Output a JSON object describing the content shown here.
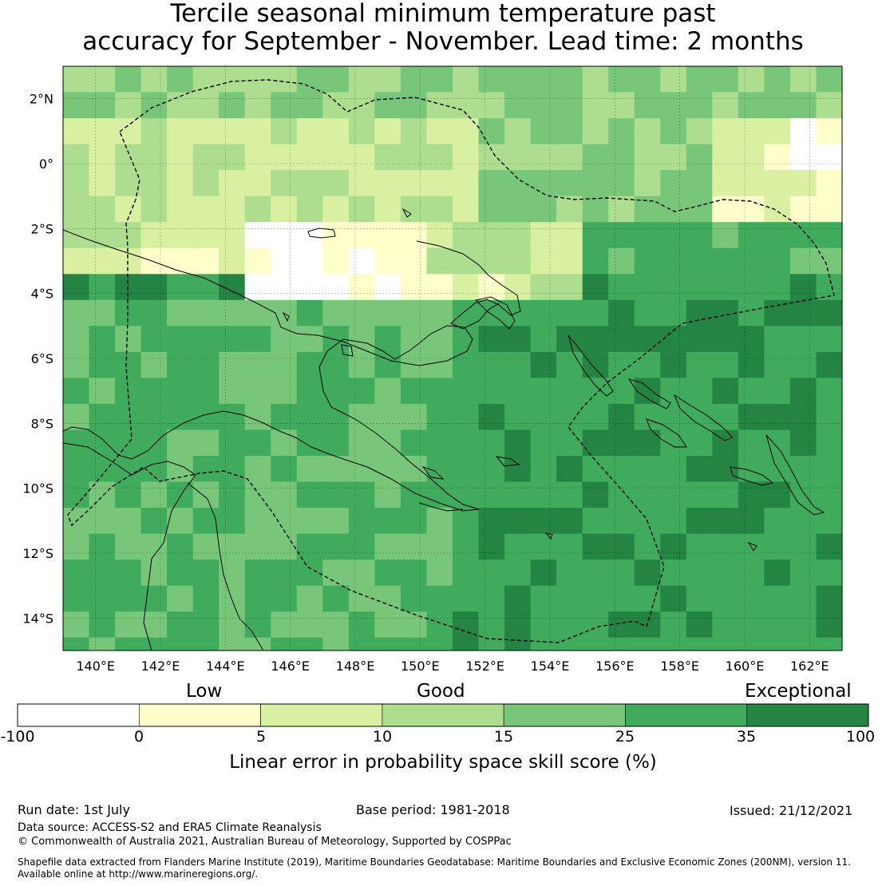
{
  "title": {
    "line1": "Tercile seasonal minimum temperature past",
    "line2": "accuracy for September - November. Lead time: 2 months"
  },
  "map": {
    "lat_labels": [
      "2°N",
      "0°",
      "2°S",
      "4°S",
      "6°S",
      "8°S",
      "10°S",
      "12°S",
      "14°S"
    ],
    "lon_labels": [
      "140°E",
      "142°E",
      "144°E",
      "146°E",
      "148°E",
      "150°E",
      "152°E",
      "154°E",
      "156°E",
      "158°E",
      "160°E",
      "162°E"
    ],
    "extent": {
      "lon": [
        139,
        163
      ],
      "lat": [
        -15,
        3
      ]
    },
    "grid_resolution_deg": 0.8
  },
  "colorbar": {
    "categories": [
      "Low",
      "Good",
      "Exceptional"
    ],
    "ticks": [
      "-100",
      "0",
      "5",
      "10",
      "15",
      "25",
      "35",
      "100"
    ],
    "colors": [
      "#ffffff",
      "#ffffcc",
      "#d9f0a3",
      "#addd8e",
      "#78c679",
      "#41ab5d",
      "#238443"
    ],
    "label": "Linear error in probability space skill score (%)"
  },
  "footer": {
    "run_date": "Run date: 1st July",
    "base_period": "Base period: 1981-2018",
    "issued": "Issued: 21/12/2021",
    "data_source": "Data source: ACCESS-S2 and ERA5 Climate Reanalysis",
    "copyright": "© Commonwealth of Australia 2021, Australian Bureau of Meteorology, Supported by COSPPac",
    "shapefile_line1": "Shapefile data extracted from Flanders Marine Institute (2019), Maritime Boundaries Geodatabase: Maritime Boundaries and Exclusive Economic Zones (200NM), version 11.",
    "shapefile_line2": "Available online at http://www.marineregions.org/."
  }
}
